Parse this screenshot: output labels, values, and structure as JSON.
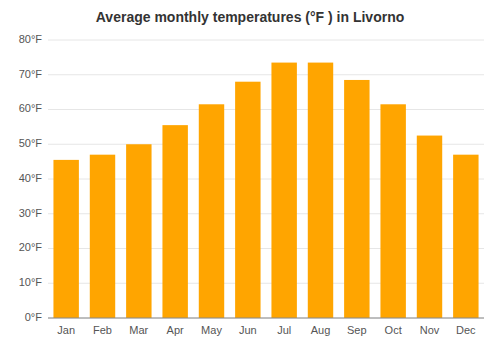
{
  "chart_data": {
    "type": "bar",
    "title": "Average monthly temperatures (°F ) in Livorno",
    "categories": [
      "Jan",
      "Feb",
      "Mar",
      "Apr",
      "May",
      "Jun",
      "Jul",
      "Aug",
      "Sep",
      "Oct",
      "Nov",
      "Dec"
    ],
    "values": [
      45.5,
      47.0,
      50.0,
      55.5,
      61.5,
      68.0,
      73.5,
      73.5,
      68.5,
      61.5,
      52.5,
      47.0
    ],
    "color": "#FFA500",
    "ylim": [
      0,
      80
    ],
    "yticks": [
      {
        "value": 0,
        "label": "0°F"
      },
      {
        "value": 10,
        "label": "10°F"
      },
      {
        "value": 20,
        "label": "20°F"
      },
      {
        "value": 30,
        "label": "30°F"
      },
      {
        "value": 40,
        "label": "40°F"
      },
      {
        "value": 50,
        "label": "50°F"
      },
      {
        "value": 60,
        "label": "60°F"
      },
      {
        "value": 70,
        "label": "70°F"
      },
      {
        "value": 80,
        "label": "80°F"
      }
    ],
    "grid": true
  }
}
